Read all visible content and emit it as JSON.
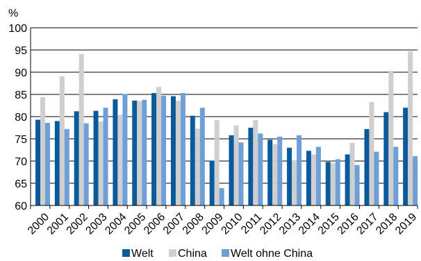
{
  "chart_data": {
    "type": "bar",
    "title": "",
    "xlabel": "",
    "ylabel": "%",
    "ylim": [
      60,
      100
    ],
    "yticks": [
      60,
      65,
      70,
      75,
      80,
      85,
      90,
      95,
      100
    ],
    "grid": true,
    "legend_position": "bottom",
    "categories": [
      "2000",
      "2001",
      "2002",
      "2003",
      "2004",
      "2005",
      "2006",
      "2007",
      "2008",
      "2009",
      "2010",
      "2011",
      "2012",
      "2013",
      "2014",
      "2015",
      "2016",
      "2017",
      "2018",
      "2019"
    ],
    "series": [
      {
        "name": "Welt",
        "color": "#0a5a9c",
        "values": [
          79.3,
          79.0,
          81.2,
          81.3,
          83.9,
          83.6,
          85.3,
          84.6,
          80.2,
          70.1,
          75.8,
          77.5,
          74.8,
          73.0,
          72.3,
          69.8,
          71.5,
          77.2,
          81.0,
          82.0
        ]
      },
      {
        "name": "China",
        "color": "#cfcfcf",
        "values": [
          84.4,
          89.1,
          94.1,
          78.9,
          80.4,
          83.5,
          86.7,
          83.6,
          77.3,
          79.2,
          78.0,
          79.2,
          73.8,
          70.2,
          71.5,
          69.5,
          74.1,
          83.3,
          90.3,
          94.7
        ]
      },
      {
        "name": "Welt ohne China",
        "color": "#6e9fd6",
        "values": [
          78.6,
          77.2,
          78.5,
          82.0,
          85.1,
          83.8,
          84.7,
          85.3,
          82.0,
          63.9,
          74.2,
          76.2,
          75.5,
          75.8,
          73.2,
          70.4,
          69.1,
          72.1,
          73.2,
          71.1
        ]
      }
    ]
  }
}
